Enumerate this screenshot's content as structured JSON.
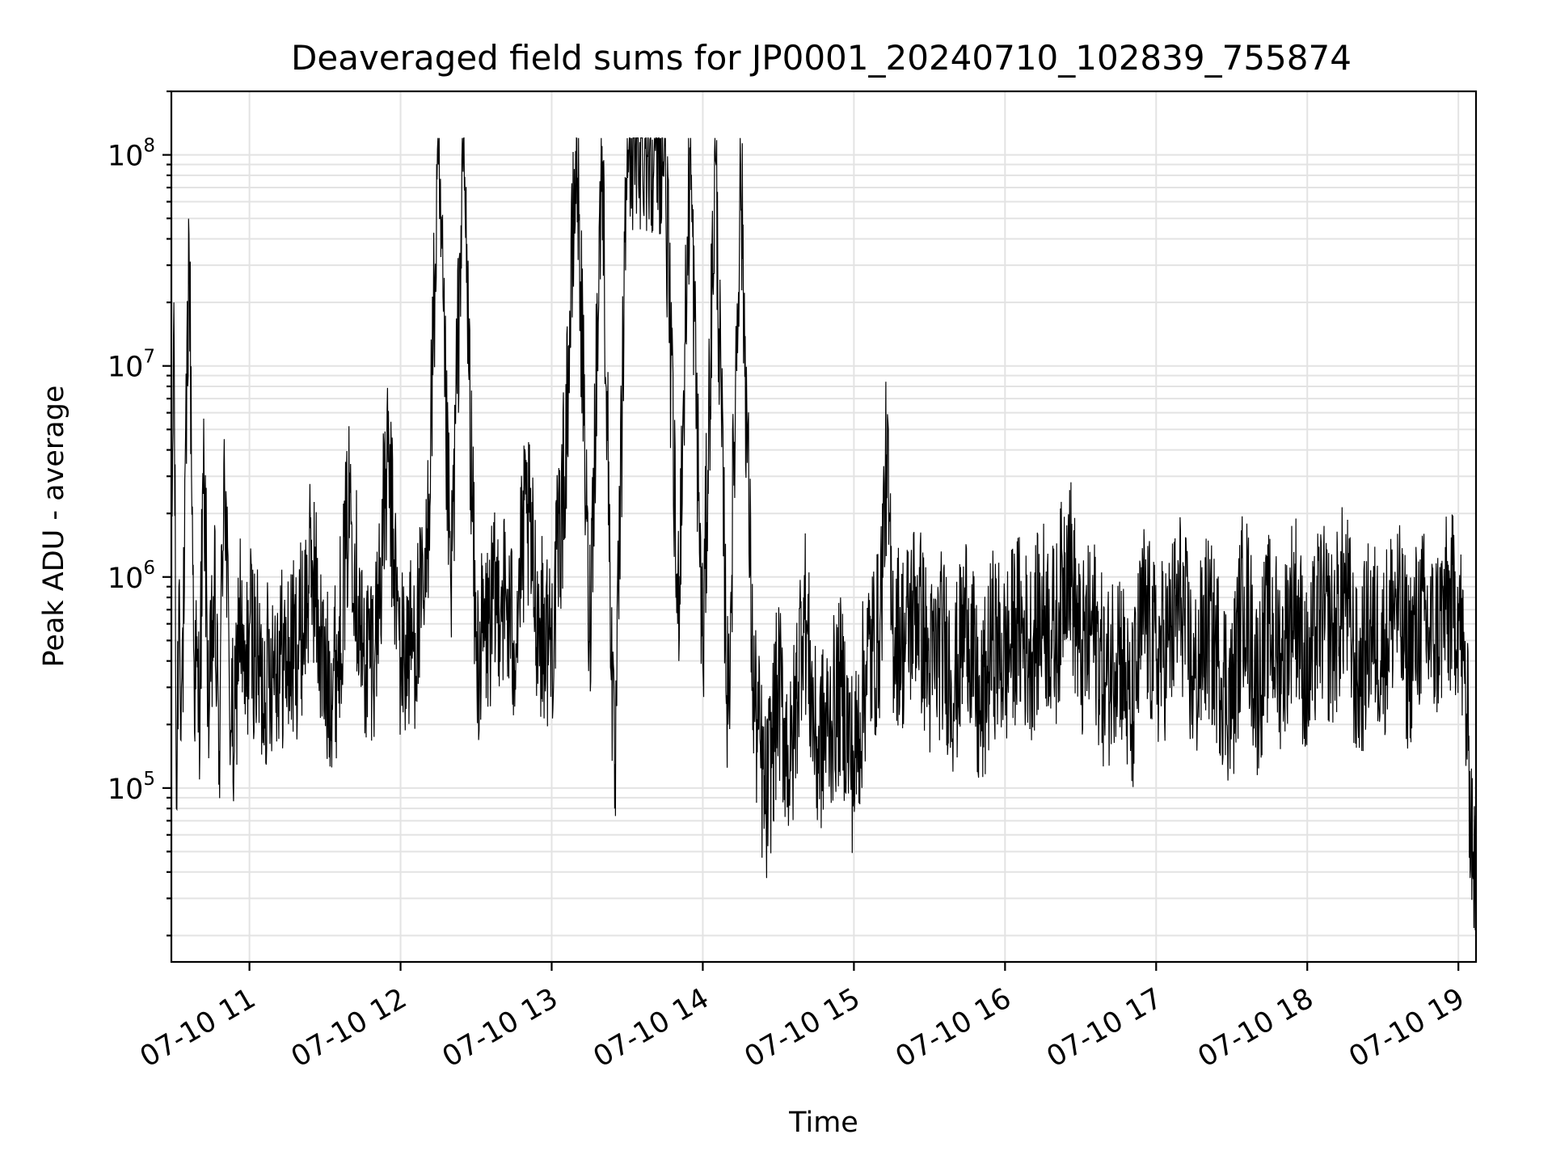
{
  "chart_data": {
    "type": "line",
    "title": "Deaveraged field sums for JP0001_20240710_102839_755874",
    "xlabel": "Time",
    "ylabel": "Peak ADU - average",
    "yscale": "log",
    "grid": true,
    "xlim": [
      "2024-07-10 10:29",
      "2024-07-10 19:07"
    ],
    "ylim": [
      15000,
      200000000
    ],
    "x_ticks": [
      "07-10 11",
      "07-10 12",
      "07-10 13",
      "07-10 14",
      "07-10 15",
      "07-10 16",
      "07-10 17",
      "07-10 18",
      "07-10 19"
    ],
    "y_ticks": [
      {
        "base": "10",
        "exp": "5",
        "value": 100000
      },
      {
        "base": "10",
        "exp": "6",
        "value": 1000000
      },
      {
        "base": "10",
        "exp": "7",
        "value": 10000000
      },
      {
        "base": "10",
        "exp": "8",
        "value": 100000000
      }
    ],
    "line_color": "#000000",
    "series": [
      {
        "x": [
          "10:29",
          "10:30",
          "10:31",
          "10:32",
          "10:33",
          "10:34",
          "10:36",
          "10:38",
          "10:40",
          "10:42",
          "10:44",
          "10:46",
          "10:48",
          "10:50",
          "10:52",
          "10:54",
          "10:56",
          "10:58",
          "11:00",
          "11:05",
          "11:10",
          "11:15",
          "11:20",
          "11:25",
          "11:30",
          "11:35",
          "11:40",
          "11:45",
          "11:50",
          "11:55",
          "12:00",
          "12:05",
          "12:10",
          "12:15",
          "12:20",
          "12:25",
          "12:30",
          "12:35",
          "12:40",
          "12:45",
          "12:50",
          "12:55",
          "13:00",
          "13:05",
          "13:10",
          "13:15",
          "13:20",
          "13:25",
          "13:30",
          "13:35",
          "13:40",
          "13:45",
          "13:50",
          "13:55",
          "14:00",
          "14:05",
          "14:10",
          "14:15",
          "14:20",
          "14:25",
          "14:30",
          "14:35",
          "14:40",
          "14:45",
          "14:50",
          "14:55",
          "15:00",
          "15:05",
          "15:10",
          "15:13",
          "15:15",
          "15:20",
          "15:25",
          "15:30",
          "15:35",
          "15:40",
          "15:45",
          "15:50",
          "15:55",
          "16:00",
          "16:05",
          "16:10",
          "16:15",
          "16:20",
          "16:25",
          "16:30",
          "16:35",
          "16:40",
          "16:45",
          "16:50",
          "16:55",
          "17:00",
          "17:05",
          "17:10",
          "17:15",
          "17:20",
          "17:25",
          "17:30",
          "17:35",
          "17:40",
          "17:45",
          "17:50",
          "17:55",
          "18:00",
          "18:05",
          "18:10",
          "18:15",
          "18:20",
          "18:25",
          "18:30",
          "18:35",
          "18:40",
          "18:45",
          "18:50",
          "18:55",
          "19:00",
          "19:02",
          "19:04",
          "19:05",
          "19:06",
          "19:07"
        ],
        "y": [
          600000,
          20000000,
          80000,
          900000,
          300000,
          600000,
          42000000,
          400000,
          250000,
          3000000,
          200000,
          800000,
          150000,
          4500000,
          300000,
          150000,
          800000,
          250000,
          600000,
          300000,
          450000,
          400000,
          500000,
          1200000,
          300000,
          400000,
          2500000,
          400000,
          500000,
          3500000,
          400000,
          500000,
          800000,
          90000000,
          800000,
          120000000,
          400000,
          600000,
          900000,
          500000,
          2000000,
          600000,
          500000,
          3000000,
          120000000,
          500000,
          110000000,
          80000,
          120000000,
          115000000,
          118000000,
          110000000,
          600000,
          100000000,
          400000,
          95000000,
          200000,
          90000000,
          300000,
          80000,
          300000,
          120000,
          800000,
          150000,
          200000,
          300000,
          120000,
          400000,
          500000,
          3800000,
          600000,
          500000,
          800000,
          350000,
          500000,
          300000,
          700000,
          200000,
          500000,
          400000,
          600000,
          450000,
          700000,
          500000,
          1500000,
          400000,
          600000,
          300000,
          550000,
          200000,
          700000,
          400000,
          500000,
          800000,
          300000,
          600000,
          400000,
          250000,
          900000,
          300000,
          600000,
          400000,
          850000,
          300000,
          700000,
          500000,
          900000,
          300000,
          600000,
          450000,
          800000,
          400000,
          650000,
          500000,
          700000,
          750000,
          400000,
          150000,
          80000,
          50000,
          25000
        ]
      }
    ]
  }
}
